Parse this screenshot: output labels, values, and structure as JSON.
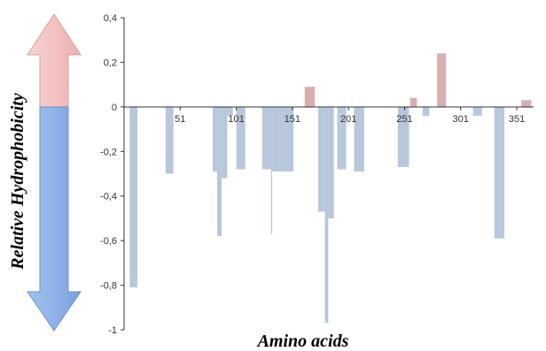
{
  "chart_data": {
    "type": "bar",
    "title": "",
    "xlabel": "Amino acids",
    "ylabel": "Relative Hydrophobicity",
    "ylim": [
      -1,
      0.4
    ],
    "xlim": [
      1,
      366
    ],
    "yticks": [
      0.4,
      0.2,
      0,
      -0.2,
      -0.4,
      -0.6,
      -0.8,
      -1
    ],
    "ytick_labels": [
      "0,4",
      "0,2",
      "0",
      "-0,2",
      "-0,4",
      "-0,6",
      "-0,8",
      "-1"
    ],
    "xticks": [
      51,
      101,
      151,
      201,
      251,
      301,
      351
    ],
    "xtick_labels": [
      "51",
      "101",
      "151",
      "201",
      "251",
      "301",
      "351"
    ],
    "grid": false,
    "legend": "none",
    "colors": {
      "hydrophilic": "#b9c7dc",
      "hydrophobic": "#d9aeae",
      "axis": "#333333",
      "arrow_up": "#f4c2c2",
      "arrow_down": "#8fb3e8"
    },
    "bars": [
      {
        "start": 6,
        "end": 13,
        "value": -0.81
      },
      {
        "start": 38,
        "end": 45,
        "value": -0.3
      },
      {
        "start": 80,
        "end": 84,
        "value": -0.29
      },
      {
        "start": 84,
        "end": 88,
        "value": -0.58
      },
      {
        "start": 88,
        "end": 93,
        "value": -0.32
      },
      {
        "start": 93,
        "end": 98,
        "value": -0.04
      },
      {
        "start": 101,
        "end": 109,
        "value": -0.28
      },
      {
        "start": 124,
        "end": 133,
        "value": -0.28
      },
      {
        "start": 132,
        "end": 133,
        "value": -0.57
      },
      {
        "start": 133,
        "end": 142,
        "value": -0.29
      },
      {
        "start": 142,
        "end": 152,
        "value": -0.29
      },
      {
        "start": 162,
        "end": 171,
        "value": 0.09
      },
      {
        "start": 174,
        "end": 180,
        "value": -0.47
      },
      {
        "start": 180,
        "end": 183,
        "value": -0.97
      },
      {
        "start": 183,
        "end": 188,
        "value": -0.5
      },
      {
        "start": 191,
        "end": 199,
        "value": -0.28
      },
      {
        "start": 206,
        "end": 215,
        "value": -0.29
      },
      {
        "start": 245,
        "end": 255,
        "value": -0.27
      },
      {
        "start": 256,
        "end": 262,
        "value": 0.04
      },
      {
        "start": 267,
        "end": 273,
        "value": -0.04
      },
      {
        "start": 280,
        "end": 288,
        "value": 0.24
      },
      {
        "start": 312,
        "end": 320,
        "value": -0.04
      },
      {
        "start": 331,
        "end": 340,
        "value": -0.59
      },
      {
        "start": 355,
        "end": 364,
        "value": 0.03
      }
    ]
  }
}
